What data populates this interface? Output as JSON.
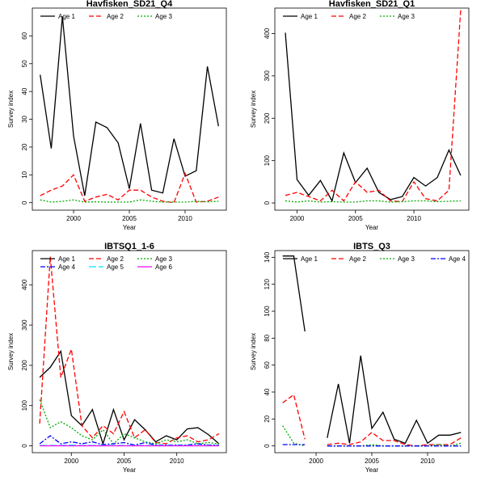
{
  "figure": {
    "chart_data": [
      {
        "type": "line",
        "title": "Havfisken_SD21_Q4",
        "xlabel": "Year",
        "ylabel": "Survey index",
        "xlim": [
          1996.3,
          2013.7
        ],
        "ylim": [
          -2.7,
          70
        ],
        "xticks": [
          2000,
          2005,
          2010
        ],
        "yticks": [
          0,
          10,
          20,
          30,
          40,
          50,
          60
        ],
        "legend": "top",
        "series": [
          {
            "name": "Age 1",
            "color": "#000000",
            "dash": "solid",
            "x": [
              1997,
              1998,
              1999,
              2000,
              2001,
              2002,
              2003,
              2004,
              2005,
              2006,
              2007,
              2008,
              2009,
              2010,
              2011,
              2012,
              2013
            ],
            "y": [
              46,
              19.5,
              67,
              24,
              2.5,
              29,
              27,
              21.5,
              5,
              28.5,
              4.5,
              3.5,
              23,
              9.5,
              11.5,
              49,
              27.5
            ]
          },
          {
            "name": "Age 2",
            "color": "#ff0000",
            "dash": "dashed",
            "x": [
              1997,
              1998,
              1999,
              2000,
              2001,
              2002,
              2003,
              2004,
              2005,
              2006,
              2007,
              2008,
              2009,
              2010,
              2011,
              2012,
              2013
            ],
            "y": [
              2.5,
              4.5,
              6,
              10,
              0.5,
              2,
              3,
              1,
              4.5,
              4.5,
              2,
              0.5,
              0,
              10.5,
              0.2,
              0.5,
              2
            ]
          },
          {
            "name": "Age 3",
            "color": "#00aa00",
            "dash": "dotted",
            "x": [
              1997,
              1998,
              1999,
              2000,
              2001,
              2002,
              2003,
              2004,
              2005,
              2006,
              2007,
              2008,
              2009,
              2010,
              2011,
              2012,
              2013
            ],
            "y": [
              1,
              0.2,
              0.5,
              1,
              0.2,
              0.3,
              0.2,
              0.2,
              0.2,
              1,
              0.5,
              0.2,
              0.2,
              0.2,
              0.5,
              0.3,
              0.5
            ]
          }
        ]
      },
      {
        "type": "line",
        "title": "Havfisken_SD21_Q1",
        "xlabel": "Year",
        "ylabel": "Survey index",
        "xlim": [
          1998.1,
          2014.7
        ],
        "ylim": [
          -17,
          460
        ],
        "xticks": [
          2000,
          2005,
          2010
        ],
        "yticks": [
          0,
          100,
          200,
          300,
          400
        ],
        "legend": "top",
        "series": [
          {
            "name": "Age 1",
            "color": "#000000",
            "dash": "solid",
            "x": [
              1999,
              2000,
              2001,
              2002,
              2003,
              2004,
              2005,
              2006,
              2007,
              2008,
              2009,
              2010,
              2011,
              2012,
              2013,
              2014
            ],
            "y": [
              402,
              55,
              18,
              53,
              5,
              118,
              48,
              82,
              25,
              8,
              15,
              60,
              40,
              60,
              125,
              65
            ]
          },
          {
            "name": "Age 2",
            "color": "#ff0000",
            "dash": "dashed",
            "x": [
              1999,
              2000,
              2001,
              2002,
              2003,
              2004,
              2005,
              2006,
              2007,
              2008,
              2009,
              2010,
              2011,
              2012,
              2013,
              2014
            ],
            "y": [
              18,
              25,
              15,
              5,
              30,
              5,
              50,
              25,
              30,
              5,
              3,
              50,
              10,
              5,
              30,
              455
            ]
          },
          {
            "name": "Age 3",
            "color": "#00aa00",
            "dash": "dotted",
            "x": [
              1999,
              2000,
              2001,
              2002,
              2003,
              2004,
              2005,
              2006,
              2007,
              2008,
              2009,
              2010,
              2011,
              2012,
              2013,
              2014
            ],
            "y": [
              5,
              2,
              5,
              2,
              3,
              2,
              2,
              5,
              5,
              2,
              3,
              5,
              5,
              3,
              4,
              5
            ]
          }
        ]
      },
      {
        "type": "line",
        "title": "IBTSQ1_1-6",
        "xlabel": "Year",
        "ylabel": "Survey index",
        "xlim": [
          1996.3,
          2014.7
        ],
        "ylim": [
          -17,
          485
        ],
        "xticks": [
          2000,
          2005,
          2010
        ],
        "yticks": [
          0,
          100,
          200,
          300,
          400
        ],
        "legend": "top",
        "series": [
          {
            "name": "Age 1",
            "color": "#000000",
            "dash": "solid",
            "x": [
              1997,
              1998,
              1999,
              2000,
              2001,
              2002,
              2003,
              2004,
              2005,
              2006,
              2007,
              2008,
              2009,
              2010,
              2011,
              2012,
              2013,
              2014
            ],
            "y": [
              170,
              195,
              235,
              75,
              50,
              90,
              5,
              90,
              15,
              65,
              40,
              10,
              25,
              15,
              42,
              45,
              28,
              5
            ]
          },
          {
            "name": "Age 2",
            "color": "#ff0000",
            "dash": "dashed",
            "x": [
              1997,
              1998,
              1999,
              2000,
              2001,
              2002,
              2003,
              2004,
              2005,
              2006,
              2007,
              2008,
              2009,
              2010,
              2011,
              2012,
              2013,
              2014
            ],
            "y": [
              55,
              470,
              170,
              240,
              50,
              20,
              50,
              30,
              85,
              20,
              40,
              8,
              5,
              20,
              25,
              10,
              15,
              30
            ]
          },
          {
            "name": "Age 3",
            "color": "#00aa00",
            "dash": "dotted",
            "x": [
              1997,
              1998,
              1999,
              2000,
              2001,
              2002,
              2003,
              2004,
              2005,
              2006,
              2007,
              2008,
              2009,
              2010,
              2011,
              2012,
              2013,
              2014
            ],
            "y": [
              115,
              45,
              60,
              45,
              25,
              15,
              40,
              5,
              30,
              20,
              10,
              5,
              15,
              10,
              15,
              5,
              8,
              5
            ]
          },
          {
            "name": "Age 4",
            "color": "#0000ff",
            "dash": "dashdot",
            "x": [
              1997,
              1998,
              1999,
              2000,
              2001,
              2002,
              2003,
              2004,
              2005,
              2006,
              2007,
              2008,
              2009,
              2010,
              2011,
              2012,
              2013,
              2014
            ],
            "y": [
              5,
              25,
              5,
              10,
              5,
              10,
              3,
              5,
              8,
              2,
              8,
              2,
              2,
              2,
              2,
              5,
              2,
              2
            ]
          },
          {
            "name": "Age 5",
            "color": "#00e5ff",
            "dash": "longdash",
            "x": [
              1997,
              1998,
              1999,
              2000,
              2001,
              2002,
              2003,
              2004,
              2005,
              2006,
              2007,
              2008,
              2009,
              2010,
              2011,
              2012,
              2013,
              2014
            ],
            "y": [
              1,
              1,
              1,
              2,
              1,
              1,
              1,
              1,
              1,
              1,
              1,
              1,
              1,
              1,
              1,
              1,
              1,
              1
            ]
          },
          {
            "name": "Age 6",
            "color": "#ff00ff",
            "dash": "solid",
            "x": [
              1997,
              1998,
              1999,
              2000,
              2001,
              2002,
              2003,
              2004,
              2005,
              2006,
              2007,
              2008,
              2009,
              2010,
              2011,
              2012,
              2013,
              2014
            ],
            "y": [
              0,
              0,
              0,
              0,
              0,
              0,
              0,
              0,
              0,
              0,
              0,
              0,
              0,
              0,
              0,
              0,
              0,
              0
            ]
          }
        ]
      },
      {
        "type": "line",
        "title": "IBTS_Q3",
        "xlabel": "Year",
        "ylabel": "Survey index",
        "xlim": [
          1996.3,
          2013.7
        ],
        "ylim": [
          -5,
          145
        ],
        "xticks": [
          2000,
          2005,
          2010
        ],
        "yticks": [
          0,
          20,
          40,
          60,
          80,
          100,
          120,
          140
        ],
        "legend": "top",
        "series": [
          {
            "name": "Age 1",
            "color": "#000000",
            "dash": "solid",
            "x": [
              1997,
              1998,
              1999,
              null,
              2001,
              2002,
              2003,
              2004,
              2005,
              2006,
              2007,
              2008,
              2009,
              2010,
              2011,
              2012,
              2013
            ],
            "y": [
              141,
              141,
              85,
              null,
              6,
              46,
              2,
              67,
              13,
              25,
              5,
              2,
              19,
              2,
              8,
              8,
              10
            ]
          },
          {
            "name": "Age 2",
            "color": "#ff0000",
            "dash": "dashed",
            "x": [
              1997,
              1998,
              1999,
              null,
              2001,
              2002,
              2003,
              2004,
              2005,
              2006,
              2007,
              2008,
              2009,
              2010,
              2011,
              2012,
              2013
            ],
            "y": [
              32,
              38,
              5,
              null,
              1,
              2,
              1,
              3,
              10,
              4,
              4,
              1,
              0,
              1,
              1,
              1,
              6
            ]
          },
          {
            "name": "Age 3",
            "color": "#00aa00",
            "dash": "dotted",
            "x": [
              1997,
              1998,
              1999,
              null,
              2001,
              2002,
              2003,
              2004,
              2005,
              2006,
              2007,
              2008,
              2009,
              2010,
              2011,
              2012,
              2013
            ],
            "y": [
              15,
              2,
              0,
              null,
              0,
              0,
              0,
              0,
              1,
              0,
              0,
              0,
              0,
              0,
              1,
              0,
              2
            ]
          },
          {
            "name": "Age 4",
            "color": "#0000ff",
            "dash": "dashdot",
            "x": [
              1997,
              1998,
              1999,
              null,
              2001,
              2002,
              2003,
              2004,
              2005,
              2006,
              2007,
              2008,
              2009,
              2010,
              2011,
              2012,
              2013
            ],
            "y": [
              1,
              1,
              1,
              null,
              0,
              0,
              0,
              0,
              0,
              0,
              0,
              0,
              0,
              0,
              0,
              0,
              0
            ]
          }
        ]
      }
    ]
  }
}
